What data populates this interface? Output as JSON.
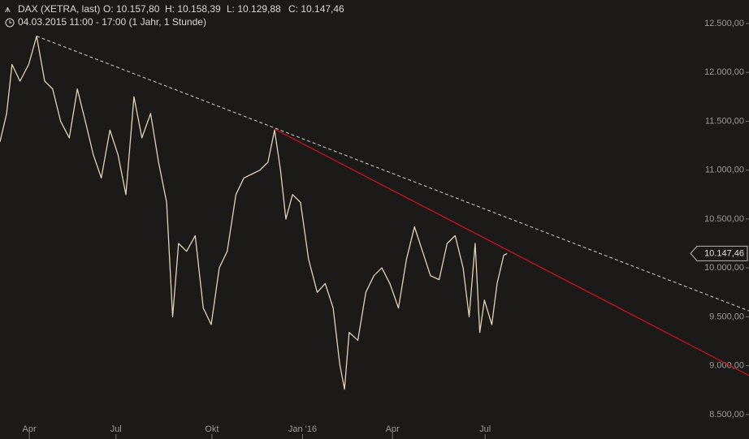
{
  "chart_data": {
    "type": "line",
    "header": {
      "symbol": "DAX (XETRA, last)",
      "open": "O: 10.157,80",
      "high": "H: 10.158,39",
      "low": "L: 10.129,88",
      "close": "C: 10.147,46",
      "period": "04.03.2015 11:00 - 17:00 (1 Jahr, 1 Stunde)"
    },
    "x": [
      0,
      1,
      1.8,
      3,
      4.3,
      5.5,
      6.7,
      7.9,
      9.1,
      10.4,
      11.6,
      12.8,
      14,
      15.2,
      16.5,
      17.7,
      18.9,
      20.1,
      21.3,
      22.6,
      23.8,
      25,
      25.9,
      26.8,
      28,
      29.3,
      30.5,
      31.7,
      32.9,
      34.1,
      35.4,
      36.6,
      37.8,
      39,
      40.2,
      41.2,
      42.1,
      42.9,
      43.9,
      45.1,
      46.3,
      47.6,
      48.8,
      50,
      51,
      51.7,
      52.4,
      53.7,
      54.9,
      56.1,
      57.3,
      58.5,
      59.8,
      61,
      62.2,
      63.4,
      64.6,
      65.9,
      67.1,
      68.3,
      69.5,
      70.4,
      71.3,
      72,
      72.7,
      73.8,
      74.6,
      75.6,
      76.1
    ],
    "values": [
      11290,
      11580,
      12080,
      11910,
      12080,
      12370,
      11910,
      11830,
      11500,
      11330,
      11830,
      11500,
      11160,
      10920,
      11410,
      11160,
      10750,
      11750,
      11330,
      11580,
      11080,
      10670,
      9500,
      10250,
      10170,
      10330,
      9590,
      9420,
      10000,
      10170,
      10750,
      10920,
      10960,
      11000,
      11080,
      11410,
      11000,
      10500,
      10750,
      10670,
      10090,
      9750,
      9840,
      9590,
      9010,
      8760,
      9340,
      9260,
      9750,
      9920,
      10000,
      9840,
      9590,
      10090,
      10420,
      10170,
      9920,
      9880,
      10250,
      10330,
      10000,
      9500,
      10250,
      9340,
      9670,
      9420,
      9840,
      10130,
      10147.46
    ],
    "color": "#e4d2b4",
    "last_value_label": "10.147,46",
    "trendlines": [
      {
        "color": "#cfcfcf",
        "dash": true,
        "points": [
          [
            5.5,
            12370
          ],
          [
            112.4,
            9560
          ]
        ]
      },
      {
        "color": "#c8141c",
        "dash": false,
        "points": [
          [
            41.2,
            11420
          ],
          [
            112.4,
            8900
          ]
        ]
      }
    ],
    "xlim": [
      0,
      112.4
    ],
    "xticks": [
      {
        "value": 4.4,
        "label": "Apr"
      },
      {
        "value": 17.4,
        "label": "Jul"
      },
      {
        "value": 31.8,
        "label": "Okt"
      },
      {
        "value": 45.4,
        "label": "Jan '16"
      },
      {
        "value": 58.9,
        "label": "Apr"
      },
      {
        "value": 72.8,
        "label": "Jul"
      }
    ],
    "ylim": [
      8250,
      12740
    ],
    "yticks": [
      {
        "value": 12500,
        "label": "12.500,00"
      },
      {
        "value": 12000,
        "label": "12.000,00"
      },
      {
        "value": 11500,
        "label": "11.500,00"
      },
      {
        "value": 11000,
        "label": "11.000,00"
      },
      {
        "value": 10500,
        "label": "10.500,00"
      },
      {
        "value": 10000,
        "label": "10.000,00"
      },
      {
        "value": 9500,
        "label": "9.500,00"
      },
      {
        "value": 9000,
        "label": "9.000,00"
      },
      {
        "value": 8500,
        "label": "8.500,00"
      }
    ]
  }
}
